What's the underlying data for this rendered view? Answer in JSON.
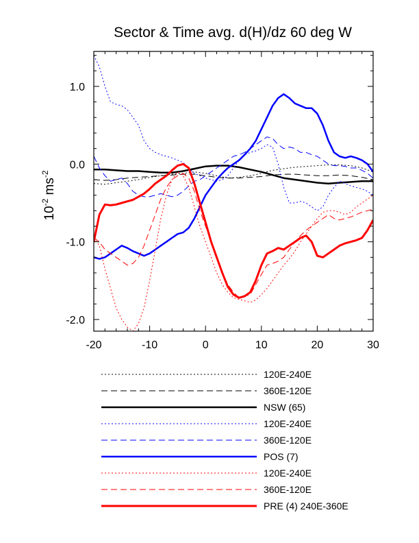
{
  "chart_data": {
    "type": "line",
    "title": "Sector & Time avg. d(H)/dz 60 deg W",
    "xlabel": "",
    "ylabel_main": "10",
    "ylabel_sup": "-2",
    "ylabel_tail": " ms",
    "ylabel_tail_sup": "-2",
    "xlim": [
      -20,
      30
    ],
    "ylim": [
      -2.15,
      1.45
    ],
    "xticks": [
      -20,
      -10,
      0,
      10,
      20,
      30
    ],
    "xtick_labels": [
      "-20",
      "-10",
      "0",
      "10",
      "20",
      "30"
    ],
    "yticks": [
      1.0,
      0.0,
      -1.0,
      -2.0
    ],
    "ytick_labels": [
      "1.0",
      "0.0",
      "-1.0",
      "-2.0"
    ],
    "grid": false,
    "legend_position": "below",
    "series": [
      {
        "name": "120E-240E",
        "color": "#000000",
        "style": "dotted",
        "width": 1,
        "x": [
          -20,
          -18,
          -16,
          -14,
          -12,
          -10,
          -8,
          -6,
          -4,
          -2,
          0,
          2,
          4,
          6,
          8,
          10,
          12,
          14,
          16,
          18,
          20,
          22,
          24,
          26,
          28,
          30
        ],
        "y": [
          -0.25,
          -0.26,
          -0.24,
          -0.22,
          -0.2,
          -0.17,
          -0.15,
          -0.13,
          -0.12,
          -0.1,
          -0.12,
          -0.15,
          -0.18,
          -0.17,
          -0.15,
          -0.12,
          -0.08,
          -0.06,
          -0.04,
          -0.03,
          -0.02,
          -0.01,
          -0.01,
          -0.02,
          -0.05,
          -0.1
        ]
      },
      {
        "name": "360E-120E",
        "color": "#000000",
        "style": "dashed",
        "width": 1,
        "x": [
          -20,
          -18,
          -16,
          -14,
          -12,
          -10,
          -8,
          -6,
          -4,
          -2,
          0,
          2,
          4,
          6,
          8,
          10,
          12,
          14,
          16,
          18,
          20,
          22,
          24,
          26,
          28,
          30
        ],
        "y": [
          -0.2,
          -0.21,
          -0.2,
          -0.18,
          -0.17,
          -0.16,
          -0.15,
          -0.14,
          -0.13,
          -0.13,
          -0.15,
          -0.17,
          -0.18,
          -0.18,
          -0.17,
          -0.16,
          -0.14,
          -0.13,
          -0.13,
          -0.14,
          -0.15,
          -0.15,
          -0.14,
          -0.15,
          -0.17,
          -0.2
        ]
      },
      {
        "name": "NSW (65)",
        "color": "#000000",
        "style": "solid",
        "width": 2.5,
        "x": [
          -20,
          -18,
          -16,
          -14,
          -12,
          -10,
          -8,
          -6,
          -4,
          -2,
          0,
          2,
          4,
          6,
          8,
          10,
          12,
          14,
          16,
          18,
          20,
          22,
          24,
          26,
          28,
          30
        ],
        "y": [
          -0.07,
          -0.07,
          -0.08,
          -0.09,
          -0.09,
          -0.1,
          -0.11,
          -0.11,
          -0.09,
          -0.06,
          -0.03,
          -0.02,
          -0.02,
          -0.04,
          -0.07,
          -0.1,
          -0.14,
          -0.18,
          -0.2,
          -0.22,
          -0.24,
          -0.25,
          -0.24,
          -0.23,
          -0.22,
          -0.22
        ]
      },
      {
        "name": "120E-240E",
        "color": "#0000ff",
        "style": "dotted",
        "width": 1,
        "x": [
          -20,
          -19,
          -18,
          -17,
          -16,
          -15,
          -14,
          -13,
          -12,
          -11,
          -10,
          -9,
          -8,
          -7,
          -6,
          -5,
          -4,
          -3,
          -2,
          -1,
          0,
          1,
          2,
          3,
          4,
          5,
          6,
          7,
          8,
          9,
          10,
          11,
          12,
          13,
          14,
          15,
          16,
          17,
          18,
          19,
          20,
          21,
          22,
          23,
          24,
          25,
          26,
          27,
          28,
          29,
          30
        ],
        "y": [
          1.4,
          1.25,
          1.0,
          0.8,
          0.77,
          0.75,
          0.7,
          0.6,
          0.5,
          0.3,
          0.2,
          0.15,
          0.12,
          0.1,
          0.08,
          0.05,
          0.02,
          -0.05,
          -0.12,
          -0.15,
          -0.18,
          -0.2,
          -0.22,
          -0.2,
          -0.15,
          -0.05,
          0.05,
          0.12,
          0.15,
          0.17,
          0.2,
          0.25,
          0.22,
          0.0,
          -0.3,
          -0.5,
          -0.5,
          -0.48,
          -0.5,
          -0.55,
          -0.6,
          -0.55,
          -0.4,
          -0.3,
          -0.22,
          -0.25,
          -0.28,
          -0.3,
          -0.32,
          -0.35,
          -0.4
        ]
      },
      {
        "name": "360E-120E",
        "color": "#0000ff",
        "style": "dashed",
        "width": 1,
        "x": [
          -20,
          -19,
          -18,
          -17,
          -16,
          -15,
          -14,
          -13,
          -12,
          -11,
          -10,
          -9,
          -8,
          -7,
          -6,
          -5,
          -4,
          -3,
          -2,
          -1,
          0,
          1,
          2,
          3,
          4,
          5,
          6,
          7,
          8,
          9,
          10,
          11,
          12,
          13,
          14,
          15,
          16,
          17,
          18,
          19,
          20,
          21,
          22,
          23,
          24,
          25,
          26,
          27,
          28,
          29,
          30
        ],
        "y": [
          0.1,
          -0.05,
          -0.15,
          -0.22,
          -0.2,
          -0.18,
          -0.25,
          -0.35,
          -0.4,
          -0.42,
          -0.42,
          -0.4,
          -0.38,
          -0.4,
          -0.42,
          -0.4,
          -0.35,
          -0.28,
          -0.22,
          -0.2,
          -0.15,
          -0.1,
          -0.05,
          0.0,
          0.05,
          0.1,
          0.12,
          0.15,
          0.2,
          0.25,
          0.3,
          0.35,
          0.33,
          0.25,
          0.2,
          0.22,
          0.2,
          0.15,
          0.15,
          0.12,
          0.1,
          0.05,
          0.0,
          -0.02,
          -0.02,
          -0.03,
          -0.05,
          -0.05,
          -0.08,
          -0.12,
          -0.18
        ]
      },
      {
        "name": "POS (7)",
        "color": "#0000ff",
        "style": "solid",
        "width": 2.5,
        "x": [
          -20,
          -19,
          -18,
          -17,
          -16,
          -15,
          -14,
          -13,
          -12,
          -11,
          -10,
          -9,
          -8,
          -7,
          -6,
          -5,
          -4,
          -3,
          -2,
          -1,
          0,
          1,
          2,
          3,
          4,
          5,
          6,
          7,
          8,
          9,
          10,
          11,
          12,
          13,
          14,
          15,
          16,
          17,
          18,
          19,
          20,
          21,
          22,
          23,
          24,
          25,
          26,
          27,
          28,
          29,
          30
        ],
        "y": [
          -1.2,
          -1.22,
          -1.2,
          -1.15,
          -1.1,
          -1.05,
          -1.08,
          -1.12,
          -1.15,
          -1.18,
          -1.15,
          -1.1,
          -1.05,
          -1.0,
          -0.95,
          -0.9,
          -0.88,
          -0.82,
          -0.7,
          -0.55,
          -0.4,
          -0.3,
          -0.2,
          -0.12,
          -0.05,
          0.0,
          0.05,
          0.12,
          0.2,
          0.3,
          0.45,
          0.6,
          0.75,
          0.85,
          0.9,
          0.85,
          0.78,
          0.75,
          0.72,
          0.72,
          0.65,
          0.5,
          0.3,
          0.15,
          0.1,
          0.08,
          0.1,
          0.08,
          0.05,
          0.0,
          -0.1
        ]
      },
      {
        "name": "120E-240E",
        "color": "#ff0000",
        "style": "dotted",
        "width": 1,
        "x": [
          -20,
          -19,
          -18,
          -17,
          -16,
          -15,
          -14,
          -13,
          -12,
          -11,
          -10,
          -9,
          -8,
          -7,
          -6,
          -5,
          -4,
          -3,
          -2,
          -1,
          0,
          1,
          2,
          3,
          4,
          5,
          6,
          7,
          8,
          9,
          10,
          11,
          12,
          13,
          14,
          15,
          16,
          17,
          18,
          19,
          20,
          21,
          22,
          23,
          24,
          25,
          26,
          27,
          28,
          29,
          30
        ],
        "y": [
          -0.95,
          -1.05,
          -1.35,
          -1.6,
          -1.85,
          -2.0,
          -2.1,
          -2.15,
          -2.05,
          -1.85,
          -1.5,
          -1.1,
          -0.7,
          -0.4,
          -0.2,
          -0.1,
          -0.15,
          -0.3,
          -0.55,
          -0.8,
          -1.0,
          -1.2,
          -1.4,
          -1.55,
          -1.65,
          -1.72,
          -1.74,
          -1.76,
          -1.78,
          -1.75,
          -1.68,
          -1.6,
          -1.5,
          -1.4,
          -1.3,
          -1.22,
          -1.12,
          -1.0,
          -0.9,
          -0.8,
          -0.7,
          -0.62,
          -0.6,
          -0.6,
          -0.62,
          -0.65,
          -0.62,
          -0.55,
          -0.5,
          -0.45,
          -0.4
        ]
      },
      {
        "name": "360E-120E",
        "color": "#ff0000",
        "style": "dashed",
        "width": 1,
        "x": [
          -20,
          -19,
          -18,
          -17,
          -16,
          -15,
          -14,
          -13,
          -12,
          -11,
          -10,
          -9,
          -8,
          -7,
          -6,
          -5,
          -4,
          -3,
          -2,
          -1,
          0,
          1,
          2,
          3,
          4,
          5,
          6,
          7,
          8,
          9,
          10,
          11,
          12,
          13,
          14,
          15,
          16,
          17,
          18,
          19,
          20,
          21,
          22,
          23,
          24,
          25,
          26,
          27,
          28,
          29,
          30
        ],
        "y": [
          -0.95,
          -1.0,
          -1.1,
          -1.15,
          -1.2,
          -1.25,
          -1.3,
          -1.28,
          -1.2,
          -1.05,
          -0.85,
          -0.65,
          -0.45,
          -0.3,
          -0.2,
          -0.15,
          -0.12,
          -0.18,
          -0.35,
          -0.6,
          -0.8,
          -1.0,
          -1.2,
          -1.4,
          -1.55,
          -1.65,
          -1.72,
          -1.7,
          -1.68,
          -1.55,
          -1.42,
          -1.3,
          -1.28,
          -1.25,
          -1.2,
          -1.1,
          -1.0,
          -0.92,
          -0.85,
          -0.8,
          -0.75,
          -0.7,
          -0.65,
          -0.7,
          -0.72,
          -0.7,
          -0.68,
          -0.65,
          -0.62,
          -0.6,
          -0.58
        ]
      },
      {
        "name": "PRE (4) 240E-360E",
        "color": "#ff0000",
        "style": "solid",
        "width": 3,
        "x": [
          -20,
          -19,
          -18,
          -17,
          -16,
          -15,
          -14,
          -13,
          -12,
          -11,
          -10,
          -9,
          -8,
          -7,
          -6,
          -5,
          -4,
          -3,
          -2,
          -1,
          0,
          1,
          2,
          3,
          4,
          5,
          6,
          7,
          8,
          9,
          10,
          11,
          12,
          13,
          14,
          15,
          16,
          17,
          18,
          19,
          20,
          21,
          22,
          23,
          24,
          25,
          26,
          27,
          28,
          29,
          30
        ],
        "y": [
          -1.0,
          -0.65,
          -0.52,
          -0.53,
          -0.52,
          -0.5,
          -0.48,
          -0.46,
          -0.42,
          -0.38,
          -0.32,
          -0.25,
          -0.2,
          -0.15,
          -0.08,
          -0.02,
          0.0,
          -0.05,
          -0.25,
          -0.5,
          -0.75,
          -1.0,
          -1.2,
          -1.4,
          -1.58,
          -1.68,
          -1.72,
          -1.7,
          -1.65,
          -1.5,
          -1.3,
          -1.15,
          -1.12,
          -1.08,
          -1.1,
          -1.05,
          -1.0,
          -0.95,
          -0.92,
          -1.0,
          -1.18,
          -1.2,
          -1.15,
          -1.1,
          -1.05,
          -1.02,
          -1.0,
          -0.98,
          -0.95,
          -0.85,
          -0.72
        ]
      }
    ]
  }
}
